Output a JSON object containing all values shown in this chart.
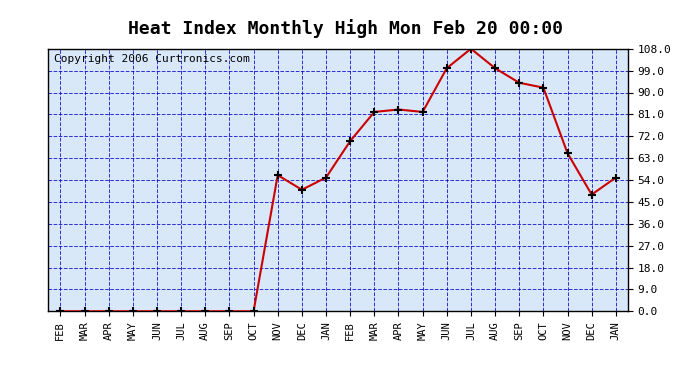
{
  "title": "Heat Index Monthly High Mon Feb 20 00:00",
  "copyright": "Copyright 2006 Curtronics.com",
  "x_labels": [
    "FEB",
    "MAR",
    "APR",
    "MAY",
    "JUN",
    "JUL",
    "AUG",
    "SEP",
    "OCT",
    "NOV",
    "DEC",
    "JAN",
    "FEB",
    "MAR",
    "APR",
    "MAY",
    "JUN",
    "JUL",
    "AUG",
    "SEP",
    "OCT",
    "NOV",
    "DEC",
    "JAN"
  ],
  "y_values": [
    0,
    0,
    0,
    0,
    0,
    0,
    0,
    0,
    0,
    56,
    50,
    55,
    70,
    82,
    83,
    82,
    100,
    108,
    100,
    94,
    92,
    65,
    48,
    55
  ],
  "y_min": 0,
  "y_max": 108,
  "y_ticks": [
    0.0,
    9.0,
    18.0,
    27.0,
    36.0,
    45.0,
    54.0,
    63.0,
    72.0,
    81.0,
    90.0,
    99.0,
    108.0
  ],
  "line_color": "#cc0000",
  "marker_color": "#000000",
  "grid_color": "#0000cc",
  "bg_color": "#d8e8f8",
  "plot_bg": "#d8e8f8",
  "outer_bg": "#ffffff",
  "title_fontsize": 13,
  "copyright_fontsize": 8
}
